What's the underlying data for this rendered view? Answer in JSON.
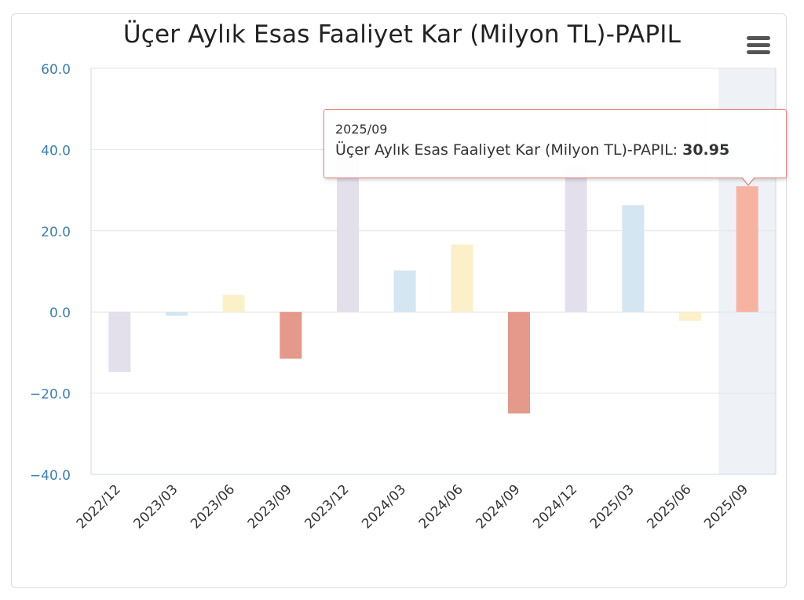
{
  "chart_data": {
    "type": "bar",
    "title": "Üçer Aylık Esas Faaliyet Kar (Milyon TL)-PAPIL",
    "series_name": "Üçer Aylık Esas Faaliyet Kar (Milyon TL)-PAPIL",
    "categories": [
      "2022/12",
      "2023/03",
      "2023/06",
      "2023/09",
      "2023/12",
      "2024/03",
      "2024/06",
      "2024/09",
      "2024/12",
      "2025/03",
      "2025/06",
      "2025/09"
    ],
    "values": [
      -14.8,
      -0.9,
      4.2,
      -11.5,
      38.0,
      10.2,
      16.6,
      -25.0,
      35.5,
      26.3,
      -2.2,
      30.95
    ],
    "ylim": [
      -40,
      60
    ],
    "yticks": [
      "60.0",
      "40.0",
      "20.0",
      "0.0",
      "−20.0",
      "−40.0"
    ],
    "colors": [
      "#e3dfeb",
      "#d4e6f2",
      "#fbf0c8",
      "#e4998a",
      "#e3dfeb",
      "#d4e6f2",
      "#fbf0c8",
      "#e4998a",
      "#e3dfeb",
      "#d4e6f2",
      "#fbf0c8",
      "#f7b3a1"
    ],
    "highlight_index": 11,
    "grid": true,
    "legend": "none"
  },
  "tooltip": {
    "category": "2025/09",
    "series_label": "Üçer Aylık Esas Faaliyet Kar (Milyon TL)-PAPIL: ",
    "value": "30.95"
  },
  "menu": {
    "icon": "hamburger-menu-icon"
  }
}
